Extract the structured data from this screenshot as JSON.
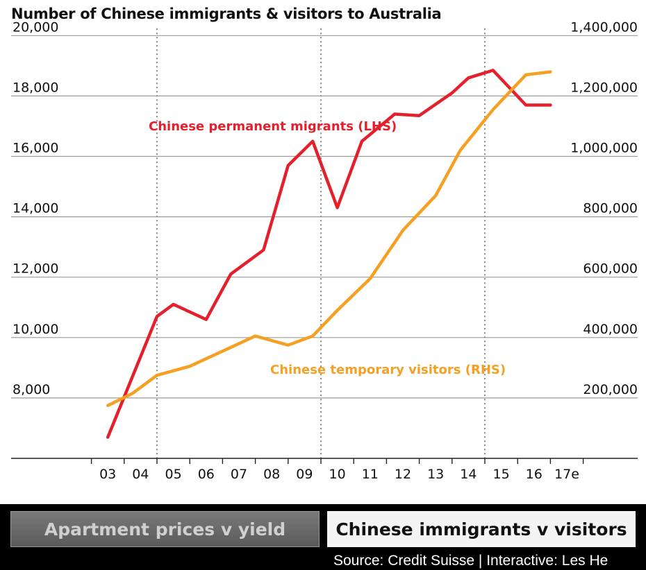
{
  "chart_data": {
    "type": "line",
    "title": "Number of Chinese immigrants & visitors to Australia",
    "categories": [
      "03",
      "04",
      "05",
      "06",
      "07",
      "08",
      "09",
      "10",
      "11",
      "12",
      "13",
      "14",
      "15",
      "16",
      "17e"
    ],
    "y_left": {
      "ticks": [
        "8,000",
        "10,000",
        "12,000",
        "14,000",
        "16,000",
        "18,000",
        "20,000"
      ],
      "range": [
        6000,
        20000
      ]
    },
    "y_right": {
      "ticks": [
        "200,000",
        "400,000",
        "600,000",
        "800,000",
        "1,000,000",
        "1,200,000",
        "1,400,000"
      ],
      "range": [
        0,
        1400000
      ]
    },
    "grid": true,
    "series": [
      {
        "name": "Chinese permanent migrants (LHS)",
        "axis": "left",
        "color": "#e3202b",
        "x": [
          3.0,
          3.75,
          4.5,
          5.0,
          6.0,
          6.75,
          7.75,
          8.5,
          9.25,
          10.0,
          10.75,
          11.75,
          12.5,
          13.5,
          14.0,
          14.75,
          15.75,
          16.5
        ],
        "values": [
          6700,
          8700,
          10700,
          11100,
          10600,
          12100,
          12900,
          15700,
          16500,
          14300,
          16500,
          17400,
          17350,
          18100,
          18600,
          18850,
          17700,
          17700
        ]
      },
      {
        "name": "Chinese temporary visitors (RHS)",
        "axis": "right",
        "color": "#f5a023",
        "x": [
          3.0,
          3.75,
          4.5,
          5.5,
          6.5,
          7.5,
          8.5,
          9.25,
          10.0,
          11.0,
          12.0,
          13.0,
          13.75,
          14.75,
          15.75,
          16.5
        ],
        "values": [
          175000,
          215000,
          275000,
          305000,
          355000,
          405000,
          375000,
          405000,
          490000,
          595000,
          755000,
          870000,
          1020000,
          1155000,
          1270000,
          1280000
        ]
      }
    ]
  },
  "tabs": {
    "apartment": "Apartment prices v yield",
    "immigrants": "Chinese immigrants v visitors"
  },
  "source": "Source: Credit Suisse | Interactive: Les He",
  "colors": {
    "migrants": "#e3202b",
    "visitors": "#f5a023",
    "tab_bar": "#000000"
  }
}
